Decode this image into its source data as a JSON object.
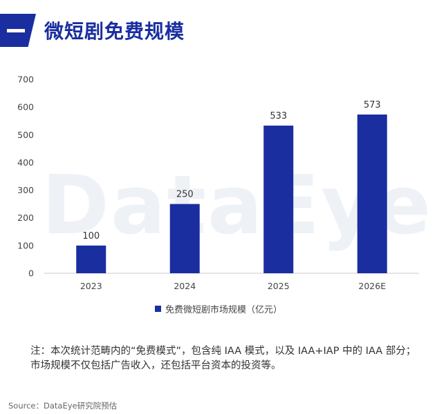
{
  "header": {
    "title": "微短剧免费规模"
  },
  "watermark": "DataEye",
  "chart_data": {
    "type": "bar",
    "categories": [
      "2023",
      "2024",
      "2025",
      "2026E"
    ],
    "series": [
      {
        "name": "免费微短剧市场规模（亿元）",
        "values": [
          100,
          250,
          533,
          573
        ]
      }
    ],
    "value_labels": [
      "100",
      "250",
      "533",
      "573"
    ],
    "yticks": [
      "0",
      "100",
      "200",
      "300",
      "400",
      "500",
      "600",
      "700"
    ],
    "ylim": [
      0,
      700
    ],
    "grid": false,
    "legend_position": "bottom",
    "bar_color": "#1a2ea0"
  },
  "legend": {
    "label": "免费微短剧市场规模（亿元）"
  },
  "note": "注：本次统计范畴内的“免费模式”，包含纯 IAA 模式，以及 IAA+IAP 中的 IAA 部分；市场规模不仅包括广告收入，还包括平台资本的投资等。",
  "source": "Source：DataEye研究院预估"
}
